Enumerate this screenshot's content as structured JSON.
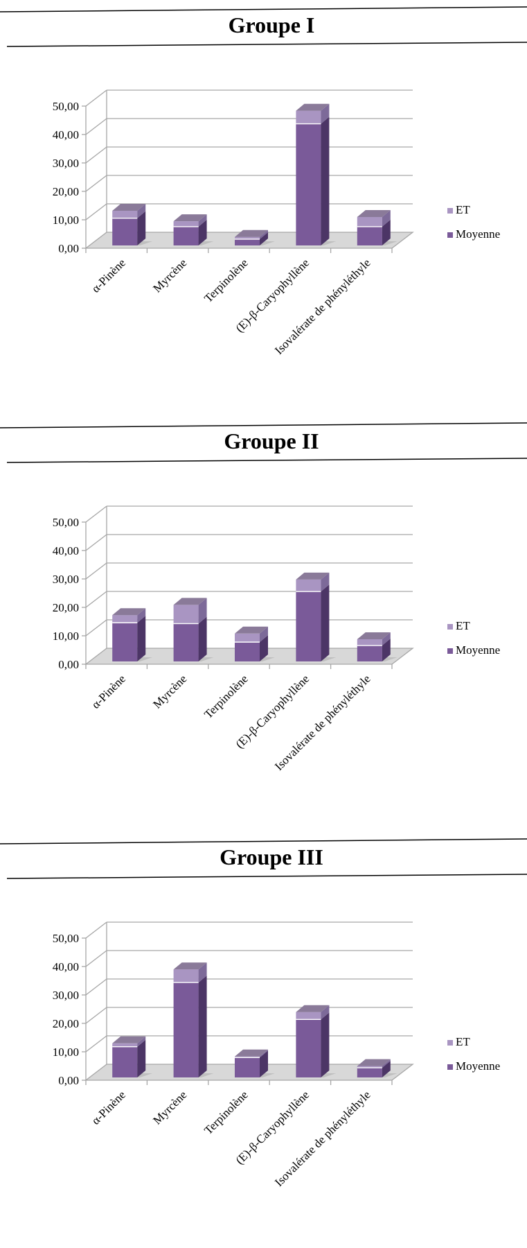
{
  "colors": {
    "moyenne_front": "#7a5a99",
    "moyenne_side": "#4c3566",
    "moyenne_top": "#947ab0",
    "et_front": "#a995c2",
    "et_side": "#7d6a99",
    "et_top": "#8a7a99",
    "grid": "#a6a6a6",
    "floor": "#d8d8d8"
  },
  "chart_data": [
    {
      "type": "bar",
      "stacked": true,
      "three_d": true,
      "title": "Groupe I",
      "categories": [
        "α-Pinène",
        "Myrcène",
        "Terpinolène",
        "(E)-β-Caryophyllène",
        "Isovalérate de phényléthyle"
      ],
      "series": [
        {
          "name": "Moyenne",
          "values": [
            9.6,
            6.6,
            2.2,
            42.8,
            6.6
          ]
        },
        {
          "name": "ET",
          "values": [
            2.6,
            1.9,
            0.8,
            4.6,
            3.4
          ]
        }
      ],
      "ylim": [
        0,
        50
      ],
      "yticks": [
        "0,00",
        "10,00",
        "20,00",
        "30,00",
        "40,00",
        "50,00"
      ],
      "legend": "right",
      "grid": true
    },
    {
      "type": "bar",
      "stacked": true,
      "three_d": true,
      "title": "Groupe II",
      "categories": [
        "α-Pinène",
        "Myrcène",
        "Terpinolène",
        "(E)-β-Caryophyllène",
        "Isovalérate de phényléthyle"
      ],
      "series": [
        {
          "name": "Moyenne",
          "values": [
            13.6,
            13.3,
            6.8,
            24.6,
            5.6
          ]
        },
        {
          "name": "ET",
          "values": [
            2.7,
            6.6,
            3.0,
            4.2,
            2.2
          ]
        }
      ],
      "ylim": [
        0,
        50
      ],
      "yticks": [
        "0,00",
        "10,00",
        "20,00",
        "30,00",
        "40,00",
        "50,00"
      ],
      "legend": "right",
      "grid": true
    },
    {
      "type": "bar",
      "stacked": true,
      "three_d": true,
      "title": "Groupe III",
      "categories": [
        "α-Pinène",
        "Myrcène",
        "Terpinolène",
        "(E)-β-Caryophyllène",
        "Isovalérate de phényléthyle"
      ],
      "series": [
        {
          "name": "Moyenne",
          "values": [
            10.8,
            33.4,
            7.0,
            20.4,
            3.4
          ]
        },
        {
          "name": "ET",
          "values": [
            1.2,
            4.6,
            0.4,
            2.6,
            0.6
          ]
        }
      ],
      "ylim": [
        0,
        50
      ],
      "yticks": [
        "0,00",
        "10,00",
        "20,00",
        "30,00",
        "40,00",
        "50,00"
      ],
      "legend": "right",
      "grid": true
    }
  ]
}
